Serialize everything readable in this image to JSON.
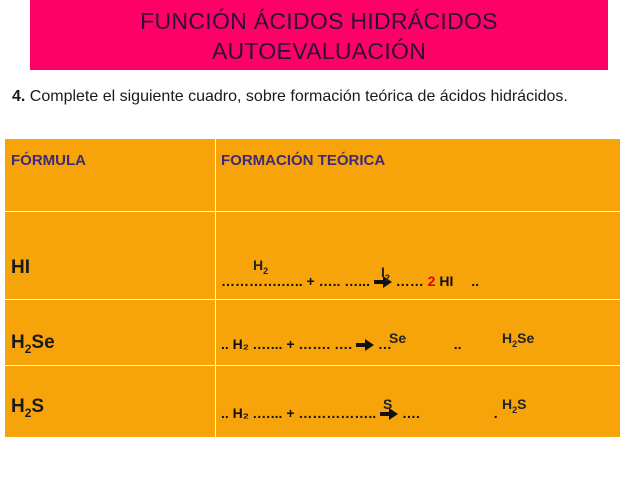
{
  "banner": {
    "title_line1": "FUNCIÓN ÁCIDOS HIDRÁCIDOS",
    "title_line2": "AUTOEVALUACIÓN"
  },
  "instruction": {
    "number": "4.",
    "text": " Complete el siguiente cuadro,  sobre formación teórica de ácidos hidrácidos."
  },
  "table": {
    "headers": {
      "formula": "FÓRMULA",
      "formation": "FORMACIÓN TEÓRICA"
    },
    "rows": [
      {
        "formula_base": "HI",
        "formula_sub": "",
        "formula_tail": "",
        "template_a": "………….…..  +  …..",
        "template_b": "  …...",
        "template_c": " ……",
        "template_end": "..",
        "ans1_base": "H",
        "ans1_sub": "2",
        "ans2_base": "I",
        "ans2_sub": "2",
        "ans3_coef": "2",
        "ans3_base": "HI",
        "ans3_sub": "",
        "ans3_tail": ""
      },
      {
        "formula_base": "H",
        "formula_sub": "2",
        "formula_tail": "Se",
        "template_a": ".. H₂   .…...  +  …….",
        "template_b": " ….",
        "template_c": " …",
        "template_end": "..",
        "ans1_base": "",
        "ans1_sub": "",
        "ans2_base": "Se",
        "ans2_sub": "",
        "ans3_coef": "",
        "ans3_base": "H",
        "ans3_sub": "2",
        "ans3_tail": "Se"
      },
      {
        "formula_base": "H",
        "formula_sub": "2",
        "formula_tail": "S",
        "template_a": "..  H₂   .…...  +  ……………..",
        "template_b": "",
        "template_c": " ….",
        "template_end": ".",
        "ans1_base": "",
        "ans1_sub": "",
        "ans2_base": "S",
        "ans2_sub": "",
        "ans3_coef": "",
        "ans3_base": "H",
        "ans3_sub": "2",
        "ans3_tail": "S"
      }
    ]
  },
  "colors": {
    "banner": "#ff0066",
    "table": "#f7a40a",
    "header_text": "#3d2a7a",
    "highlight": "#e00000"
  }
}
